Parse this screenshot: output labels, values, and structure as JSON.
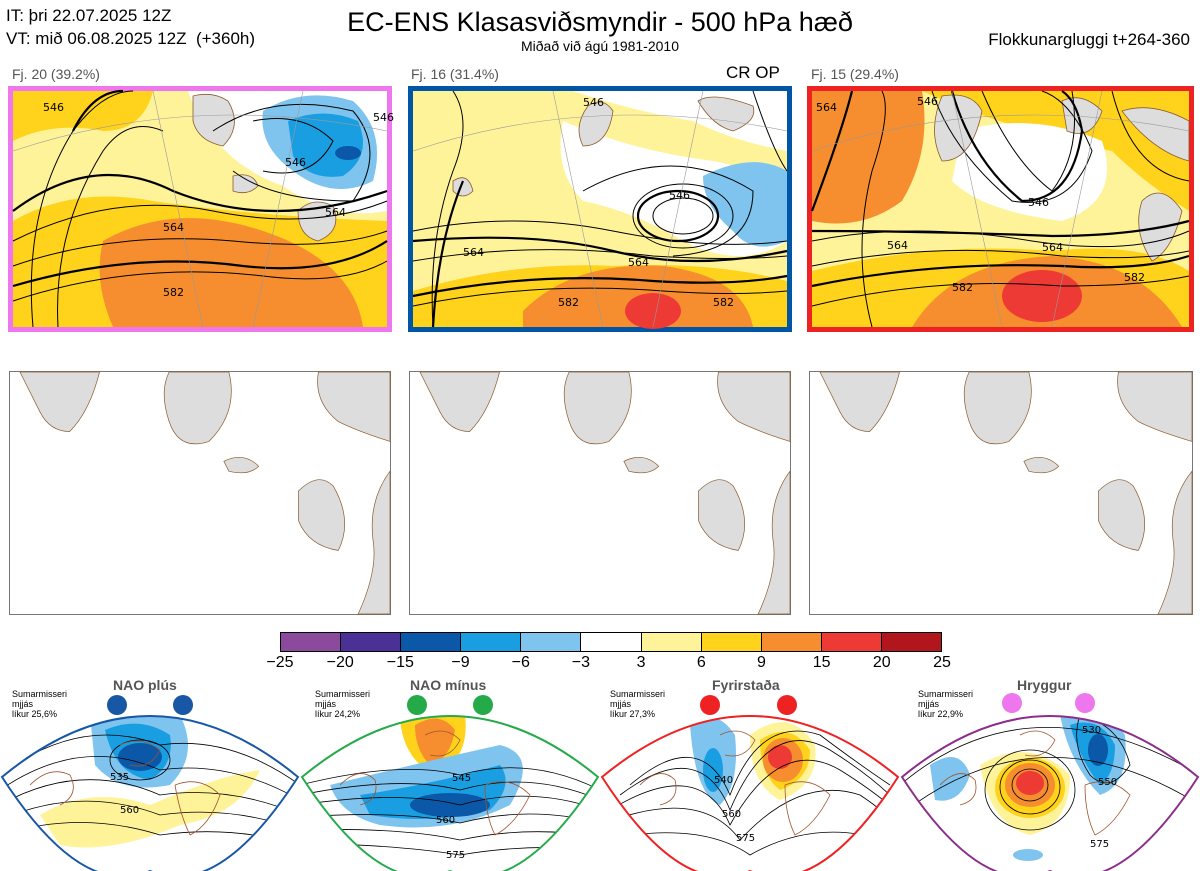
{
  "header": {
    "it_line": "IT: þri 22.07.2025 12Z",
    "vt_line": "VT: mið 06.08.2025 12Z  (+360h)",
    "title": "EC-ENS Klasasviðsmyndir - 500 hPa hæð",
    "subtitle": "Miðað við ágú 1981-2010",
    "window": "Flokkunargluggi t+264-360"
  },
  "clusters": [
    {
      "label": "Fj. 20 (39.2%)",
      "border_color": "#ee77ee",
      "contours": [
        "546",
        "564",
        "582",
        "546",
        "546",
        "564"
      ]
    },
    {
      "label": "Fj. 16 (31.4%)",
      "border_color": "#0055a5",
      "badge": "CR OP",
      "contours": [
        "546",
        "546",
        "564",
        "564",
        "582",
        "582"
      ]
    },
    {
      "label": "Fj. 15 (29.4%)",
      "border_color": "#ee2222",
      "contours": [
        "564",
        "546",
        "546",
        "564",
        "564",
        "582",
        "582"
      ]
    }
  ],
  "colorbar": {
    "colors": [
      "#8b4a9c",
      "#4b3196",
      "#0b58a8",
      "#1a9ee2",
      "#7fc4ee",
      "#ffffff",
      "#fff39a",
      "#ffd21c",
      "#f68e2f",
      "#ee3a35",
      "#b0161c"
    ],
    "ticks": [
      "−25",
      "−20",
      "−15",
      "−9",
      "−6",
      "−3",
      "3",
      "6",
      "9",
      "15",
      "20",
      "25"
    ]
  },
  "regimes": [
    {
      "name": "NAO plús",
      "info": "Sumarmisseri\nmjjás\nlíkur 25,6%",
      "dot_color": "#1857a5",
      "frame_color": "#1857a5",
      "contours": [
        "535",
        "560"
      ]
    },
    {
      "name": "NAO mínus",
      "info": "Sumarmisseri\nmjjás\nlíkur 24,2%",
      "dot_color": "#25aa4a",
      "frame_color": "#25aa4a",
      "contours": [
        "545",
        "560",
        "575"
      ]
    },
    {
      "name": "Fyrirstaða",
      "info": "Sumarmisseri\nmjjás\nlíkur 27,3%",
      "dot_color": "#ee2222",
      "frame_color": "#ee2222",
      "contours": [
        "540",
        "560",
        "575"
      ]
    },
    {
      "name": "Hryggur",
      "info": "Sumarmisseri\nmjjás\nlíkur 22,9%",
      "dot_color": "#ee77ee",
      "frame_color": "#8b2e8b",
      "contours": [
        "530",
        "550",
        "575"
      ]
    }
  ]
}
